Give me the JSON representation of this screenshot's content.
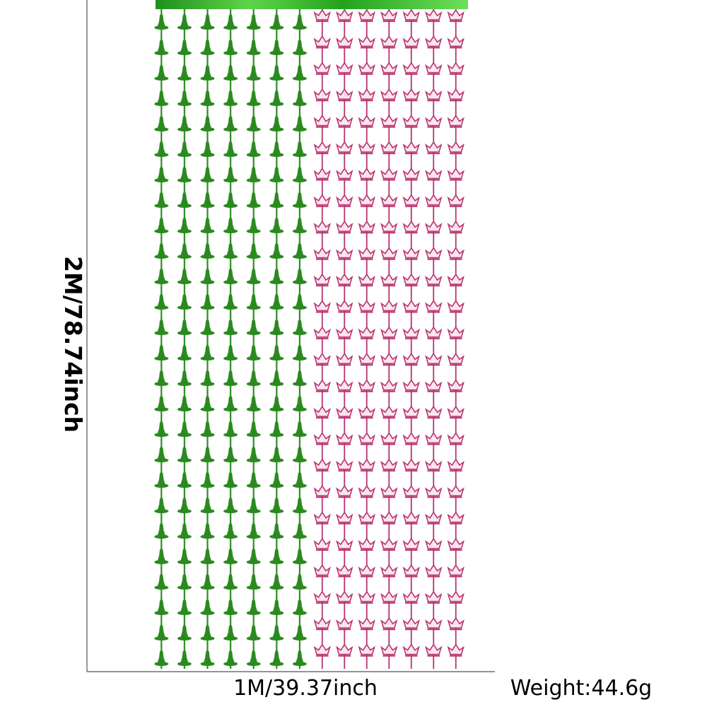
{
  "height_label": "2M/78.74inch",
  "width_label": "1M/39.37inch",
  "weight_label": "Weight:44.6g"
}
